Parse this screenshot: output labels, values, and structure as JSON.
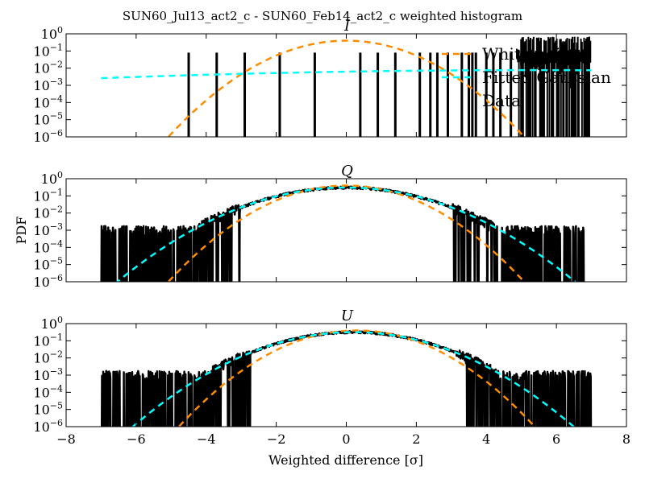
{
  "chart_data": {
    "type": "line",
    "title": "SUN60_Jul13_act2_c - SUN60_Feb14_act2_c weighted histogram",
    "xlabel": "Weighted difference [σ]",
    "ylabel": "PDF",
    "xlim": [
      -8,
      8
    ],
    "ylim": [
      1e-06,
      1
    ],
    "yscale": "log",
    "grid": false,
    "legend": {
      "placement": "top-right (panel I)",
      "entries": [
        {
          "name": "White noise",
          "color": "#ff8c00",
          "style": "dashed"
        },
        {
          "name": "Fitted Gaussian",
          "color": "#00ffff",
          "style": "dashed"
        },
        {
          "name": "Data",
          "color": "#000000",
          "style": "solid"
        }
      ]
    },
    "x_ticks": [
      -8,
      -6,
      -4,
      -2,
      0,
      2,
      4,
      6,
      8
    ],
    "x_tick_labels": [
      "−8",
      "−6",
      "−4",
      "−2",
      "0",
      "2",
      "4",
      "6",
      "8"
    ],
    "y_tick_exponents": [
      "0",
      "-1",
      "-2",
      "-3",
      "-4",
      "-5",
      "-6"
    ],
    "panels": [
      {
        "name": "I",
        "white_noise": {
          "mu": 0,
          "sigma": 1
        },
        "fitted_gaussian": {
          "mu": 5.5,
          "sigma": 8.5,
          "amplitude": 0.0077
        },
        "data": {
          "spikes": [
            -4.5,
            -3.7,
            -2.9,
            -1.9,
            -0.9,
            0.4,
            0.9,
            1.4,
            2.1,
            2.4,
            2.6,
            2.9,
            3.3,
            3.5,
            3.6,
            3.7,
            4.0,
            4.2,
            4.4,
            4.7,
            5.0,
            5.2,
            5.4,
            5.6,
            5.9,
            6.2,
            6.5,
            6.9
          ],
          "spike_level": 0.08,
          "dense_region": [
            4.9,
            7.0
          ],
          "dense_level": 0.5
        }
      },
      {
        "name": "Q",
        "white_noise": {
          "mu": 0,
          "sigma": 1
        },
        "fitted_gaussian": {
          "mu": 0,
          "sigma": 1.3
        },
        "data": {
          "mu": 0,
          "sigma": 1.3,
          "min": -7,
          "max": 6.8,
          "noise_floor": 0.0005
        }
      },
      {
        "name": "U",
        "white_noise": {
          "mu": 0.3,
          "sigma": 1
        },
        "fitted_gaussian": {
          "mu": 0.2,
          "sigma": 1.25
        },
        "data": {
          "mu": 0.2,
          "sigma": 1.25,
          "min": -7,
          "max": 7.0,
          "noise_floor": 0.0005
        }
      }
    ]
  }
}
